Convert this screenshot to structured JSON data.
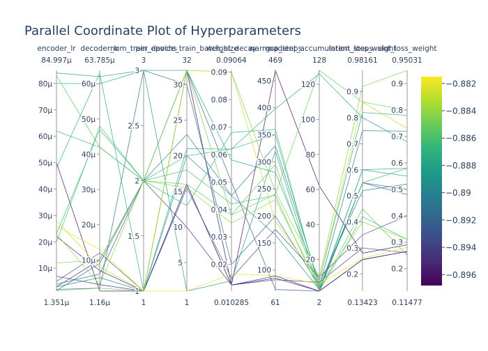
{
  "chart_data": {
    "type": "parallel_coordinates",
    "title": "Parallel Coordinate Plot of Hyperparameters",
    "dimensions": [
      {
        "label": "encoder_lr",
        "range": [
          1.351e-06,
          8.4997e-05
        ],
        "ticks": [
          1e-05,
          2e-05,
          3e-05,
          4e-05,
          5e-05,
          6e-05,
          7e-05,
          8e-05
        ],
        "tick_labels": [
          "10µ",
          "20µ",
          "30µ",
          "40µ",
          "50µ",
          "60µ",
          "70µ",
          "80µ"
        ],
        "min_label": "1.351µ",
        "max_label": "84.997µ"
      },
      {
        "label": "decoder_lr",
        "range": [
          1.16e-06,
          6.3785e-05
        ],
        "ticks": [
          1e-05,
          2e-05,
          3e-05,
          4e-05,
          5e-05,
          6e-05
        ],
        "tick_labels": [
          "10µ",
          "20µ",
          "30µ",
          "40µ",
          "50µ",
          "60µ"
        ],
        "min_label": "1.16µ",
        "max_label": "63.785µ"
      },
      {
        "label": "num_train_epochs",
        "range": [
          1,
          3
        ],
        "ticks": [
          1,
          1.5,
          2,
          2.5,
          3
        ],
        "tick_labels": [
          "1",
          "1.5",
          "2",
          "2.5",
          "3"
        ],
        "min_label": "1",
        "max_label": "3"
      },
      {
        "label": "per_device_train_batch_size",
        "range": [
          1,
          32
        ],
        "ticks": [
          5,
          10,
          15,
          20,
          25,
          30
        ],
        "tick_labels": [
          "5",
          "10",
          "15",
          "20",
          "25",
          "30"
        ],
        "min_label": "1",
        "max_label": "32"
      },
      {
        "label": "weight_decay",
        "range": [
          0.010285,
          0.09064
        ],
        "ticks": [
          0.02,
          0.03,
          0.04,
          0.05,
          0.06,
          0.07,
          0.08,
          0.09
        ],
        "tick_labels": [
          "0.02",
          "0.03",
          "0.04",
          "0.05",
          "0.06",
          "0.07",
          "0.08",
          "0.09"
        ],
        "min_label": "0.010285",
        "max_label": "0.09064"
      },
      {
        "label": "warmup_steps",
        "range": [
          61,
          469
        ],
        "ticks": [
          100,
          150,
          200,
          250,
          300,
          350,
          400,
          450
        ],
        "tick_labels": [
          "100",
          "150",
          "200",
          "250",
          "300",
          "350",
          "400",
          "450"
        ],
        "min_label": "61",
        "max_label": "469"
      },
      {
        "label": "gradient_accumulation_steps",
        "range": [
          2,
          128
        ],
        "ticks": [
          20,
          40,
          60,
          80,
          100,
          120
        ],
        "tick_labels": [
          "20",
          "40",
          "60",
          "80",
          "100",
          "120"
        ],
        "min_label": "2",
        "max_label": "128"
      },
      {
        "label": "intent_loss_weight",
        "range": [
          0.13423,
          0.98161
        ],
        "ticks": [
          0.2,
          0.3,
          0.4,
          0.5,
          0.6,
          0.7,
          0.8,
          0.9
        ],
        "tick_labels": [
          "0.2",
          "0.3",
          "0.4",
          "0.5",
          "0.6",
          "0.7",
          "0.8",
          "0.9"
        ],
        "min_label": "0.13423",
        "max_label": "0.98161"
      },
      {
        "label": "slot_loss_weight",
        "range": [
          0.11477,
          0.95031
        ],
        "ticks": [
          0.2,
          0.3,
          0.4,
          0.5,
          0.6,
          0.7,
          0.8,
          0.9
        ],
        "tick_labels": [
          "0.2",
          "0.3",
          "0.4",
          "0.5",
          "0.6",
          "0.7",
          "0.8",
          "0.9"
        ],
        "min_label": "0.11477",
        "max_label": "0.95031"
      }
    ],
    "colorscale": "Viridis",
    "color_range": [
      -0.8968,
      -0.8815
    ],
    "colorbar_ticks": [
      -0.896,
      -0.894,
      -0.892,
      -0.89,
      -0.888,
      -0.886,
      -0.884,
      -0.882
    ],
    "colorbar_tick_labels": [
      "−0.896",
      "−0.894",
      "−0.892",
      "−0.89",
      "−0.888",
      "−0.886",
      "−0.884",
      "−0.882"
    ],
    "lines": [
      {
        "values": [
          5e-05,
          1.2e-06,
          1,
          32,
          0.0125,
          469,
          62,
          0.28,
          0.29
        ],
        "color": -0.8965
      },
      {
        "values": [
          2.2e-05,
          7e-06,
          1,
          16,
          0.0125,
          85,
          2,
          0.255,
          0.265
        ],
        "color": -0.8955
      },
      {
        "values": [
          3e-06,
          1e-05,
          2,
          10,
          0.0125,
          89,
          2,
          0.255,
          0.265
        ],
        "color": -0.895
      },
      {
        "values": [
          5e-06,
          1.2e-05,
          1,
          15.5,
          0.015,
          175,
          10,
          0.35,
          0.4
        ],
        "color": -0.8935
      },
      {
        "values": [
          7e-06,
          3e-06,
          1,
          16,
          0.0125,
          82,
          7,
          0.3,
          0.26
        ],
        "color": -0.894
      },
      {
        "values": [
          4e-06,
          6e-06,
          2,
          32,
          0.05,
          64,
          2,
          0.55,
          0.48
        ],
        "color": -0.8925
      },
      {
        "values": [
          2e-06,
          2e-06,
          3,
          30,
          0.02,
          200,
          5,
          0.75,
          0.72
        ],
        "color": -0.8915
      },
      {
        "values": [
          1.5e-06,
          9e-06,
          2,
          23,
          0.045,
          330,
          6,
          0.52,
          0.52
        ],
        "color": -0.8905
      },
      {
        "values": [
          3e-06,
          5e-06,
          1,
          20,
          0.045,
          165,
          3,
          0.55,
          0.5
        ],
        "color": -0.8895
      },
      {
        "values": [
          8.4e-05,
          6.2e-05,
          3,
          1,
          0.014,
          320,
          2,
          0.6,
          0.55
        ],
        "color": -0.8885
      },
      {
        "values": [
          8e-05,
          6e-05,
          3,
          32,
          0.058,
          280,
          8,
          0.82,
          0.78
        ],
        "color": -0.888
      },
      {
        "values": [
          4.8e-05,
          6.3e-05,
          1,
          21,
          0.062,
          398,
          126,
          0.8,
          0.68
        ],
        "color": -0.8875
      },
      {
        "values": [
          2.3e-05,
          4.7e-05,
          2,
          13,
          0.068,
          360,
          3,
          0.6,
          0.58
        ],
        "color": -0.887
      },
      {
        "values": [
          6.2e-05,
          4.2e-05,
          2,
          20,
          0.062,
          350,
          4,
          0.55,
          0.58
        ],
        "color": -0.8865
      },
      {
        "values": [
          2e-05,
          4.8e-05,
          2,
          18,
          0.042,
          238,
          2,
          0.42,
          0.31
        ],
        "color": -0.886
      },
      {
        "values": [
          8.3e-05,
          4.2e-05,
          2,
          16,
          0.038,
          295,
          2,
          0.45,
          0.25
        ],
        "color": -0.8855
      },
      {
        "values": [
          1.5e-06,
          2e-06,
          1,
          32,
          0.038,
          240,
          128,
          0.86,
          0.8
        ],
        "color": -0.885
      },
      {
        "values": [
          1.2e-05,
          1e-05,
          2,
          32,
          0.09,
          245,
          10,
          0.92,
          0.95
        ],
        "color": -0.8845
      },
      {
        "values": [
          2.3e-05,
          3e-06,
          2,
          15.5,
          0.035,
          230,
          5,
          0.4,
          0.31
        ],
        "color": -0.884
      },
      {
        "values": [
          2.8e-05,
          8e-06,
          1,
          32,
          0.09,
          190,
          8,
          0.86,
          0.73
        ],
        "color": -0.883
      },
      {
        "values": [
          2.6e-05,
          1.3e-05,
          1,
          1,
          0.0165,
          90,
          6,
          0.26,
          0.28
        ],
        "color": -0.882
      }
    ]
  }
}
